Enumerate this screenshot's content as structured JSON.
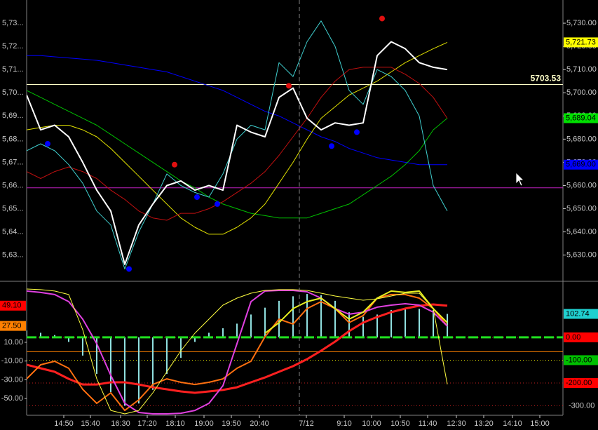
{
  "chart_data": [
    {
      "type": "line",
      "xlim": [
        0,
        153
      ],
      "ylim": [
        5619,
        5740
      ],
      "yticks": [
        {
          "value": 5630,
          "label": "5,630.00"
        },
        {
          "value": 5640,
          "label": "5,640.00"
        },
        {
          "value": 5650,
          "label": "5,650.00"
        },
        {
          "value": 5660,
          "label": "5,660.00"
        },
        {
          "value": 5670,
          "label": "5,670.00"
        },
        {
          "value": 5680,
          "label": "5,680.00"
        },
        {
          "value": 5690,
          "label": "5,690.00"
        },
        {
          "value": 5700,
          "label": "5,700.00"
        },
        {
          "value": 5710,
          "label": "5,710.00"
        },
        {
          "value": 5720,
          "label": "5,720.00"
        },
        {
          "value": 5730,
          "label": "5,730.00"
        }
      ],
      "left_labels": [
        "5,63...",
        "5,64...",
        "5,65...",
        "5,66...",
        "5,67...",
        "5,68...",
        "5,69...",
        "5,70...",
        "5,71...",
        "5,72...",
        "5,73..."
      ],
      "day_separator": 77.8,
      "x": [
        0,
        4,
        8,
        12,
        16,
        20,
        24,
        28,
        32,
        36,
        40,
        44,
        48,
        52,
        56,
        60,
        64,
        68,
        72,
        76,
        80,
        84,
        88,
        92,
        96,
        100,
        104,
        108,
        112,
        116,
        120
      ],
      "hlines": [
        {
          "value": 5703.53,
          "color": "#ffffc8",
          "label": "5703.53"
        },
        {
          "value": 5659,
          "color": "#c020c0"
        }
      ],
      "series": [
        {
          "type": "line",
          "color": "#0000ff",
          "width": 1,
          "values": [
            5716,
            5716,
            5715.5,
            5715,
            5714.5,
            5714,
            5713,
            5712,
            5711,
            5710,
            5709,
            5707,
            5705,
            5703,
            5701,
            5698,
            5695,
            5692,
            5690,
            5687,
            5684,
            5681,
            5679,
            5676,
            5674,
            5672,
            5671,
            5670,
            5669,
            5669,
            5669
          ],
          "last_label": "5,669.00",
          "label_color": "#0000ff"
        },
        {
          "type": "line",
          "color": "#00c000",
          "width": 1,
          "values": [
            5701,
            5698,
            5695,
            5692,
            5689,
            5686,
            5682,
            5678,
            5674,
            5670,
            5666,
            5662,
            5659,
            5655,
            5652,
            5650,
            5648,
            5647,
            5646,
            5646,
            5646,
            5648,
            5650,
            5652,
            5656,
            5660,
            5664,
            5669,
            5675,
            5684,
            5689.04
          ],
          "last_label": "5,689.04",
          "label_color": "#00e000"
        },
        {
          "type": "line",
          "color": "#e0e000",
          "width": 1,
          "values": [
            5684,
            5685,
            5686,
            5686,
            5684,
            5681,
            5676,
            5670,
            5664,
            5658,
            5652,
            5646,
            5642,
            5639,
            5639,
            5642,
            5646,
            5652,
            5661,
            5670,
            5680,
            5689,
            5694,
            5699,
            5702,
            5705,
            5709,
            5713,
            5716,
            5719,
            5721.73
          ],
          "last_label": "5,721.73",
          "label_color": "#ffff00"
        },
        {
          "type": "line",
          "color": "#c01010",
          "width": 1,
          "values": [
            5666,
            5663,
            5666,
            5668,
            5666,
            5663,
            5658,
            5654,
            5649,
            5646,
            5645,
            5648,
            5648,
            5650,
            5653,
            5657,
            5661,
            5666,
            5673,
            5681,
            5689,
            5698,
            5705,
            5710,
            5711,
            5711,
            5711,
            5708,
            5704,
            5698,
            5689
          ]
        },
        {
          "type": "line",
          "color": "#40d0d0",
          "width": 1,
          "values": [
            5675,
            5678,
            5675,
            5669,
            5661,
            5649,
            5643,
            5624,
            5640,
            5652,
            5665,
            5660,
            5657,
            5655,
            5665,
            5680,
            5686,
            5684,
            5713,
            5707,
            5722,
            5731,
            5720,
            5701,
            5695,
            5710,
            5707,
            5701,
            5690,
            5660,
            5649
          ]
        },
        {
          "type": "line",
          "color": "#ffffff",
          "width": 2,
          "values": [
            5699,
            5684,
            5686,
            5681,
            5670,
            5658,
            5649,
            5626,
            5643,
            5652,
            5660,
            5662,
            5658,
            5660,
            5658,
            5686,
            5683,
            5681,
            5698,
            5702,
            5689,
            5684,
            5687,
            5686,
            5687,
            5716,
            5722,
            5719,
            5713,
            5711,
            5710
          ]
        }
      ],
      "points": [
        {
          "x": 6,
          "y": 5678,
          "color": "#0000ff"
        },
        {
          "x": 29.2,
          "y": 5624,
          "color": "#0000ff"
        },
        {
          "x": 48.6,
          "y": 5655,
          "color": "#0000ff"
        },
        {
          "x": 54.4,
          "y": 5652,
          "color": "#0000ff"
        },
        {
          "x": 87,
          "y": 5677,
          "color": "#0000ff"
        },
        {
          "x": 94.2,
          "y": 5683,
          "color": "#0000ff"
        },
        {
          "x": 42.2,
          "y": 5669,
          "color": "#e01010"
        },
        {
          "x": 74.8,
          "y": 5703,
          "color": "#e01010"
        },
        {
          "x": 101.4,
          "y": 5732,
          "color": "#e01010"
        }
      ]
    },
    {
      "type": "line",
      "xlim": [
        0,
        153
      ],
      "ylim": [
        -67.9,
        68.4
      ],
      "yticks": [
        {
          "value": 10,
          "label": "10.00"
        },
        {
          "value": -10,
          "label": "-10.00"
        },
        {
          "value": -30,
          "label": "-30.00"
        },
        {
          "value": -50,
          "label": "-50.00"
        }
      ],
      "y2lim": [
        -341.5,
        218
      ],
      "y2ticks": [
        {
          "value": 0,
          "label": "0.00",
          "box": "#ff0000"
        },
        {
          "value": -100,
          "label": "-100.00",
          "box": "#00c000"
        },
        {
          "value": -200,
          "label": "-200.00",
          "box": "#ff0000"
        },
        {
          "value": -300,
          "label": "-300.00"
        }
      ],
      "xticks": [
        {
          "value": 10.6,
          "label": "14:50"
        },
        {
          "value": 18.2,
          "label": "15:40"
        },
        {
          "value": 26.8,
          "label": "16:30"
        },
        {
          "value": 34.4,
          "label": "17:20"
        },
        {
          "value": 42.4,
          "label": "18:10"
        },
        {
          "value": 50.6,
          "label": "19:00"
        },
        {
          "value": 58.4,
          "label": "19:50"
        },
        {
          "value": 66.4,
          "label": "20:40"
        },
        {
          "value": 79.8,
          "label": "7/12"
        },
        {
          "value": 90.6,
          "label": "9:10"
        },
        {
          "value": 98.4,
          "label": "10:00"
        },
        {
          "value": 106.6,
          "label": "10:50"
        },
        {
          "value": 114.4,
          "label": "11:40"
        },
        {
          "value": 122.6,
          "label": "12:30"
        },
        {
          "value": 130.4,
          "label": "13:20"
        },
        {
          "value": 138.6,
          "label": "14:10"
        },
        {
          "value": 146.4,
          "label": "15:00"
        }
      ],
      "x": [
        0,
        4,
        8,
        12,
        16,
        20,
        24,
        28,
        32,
        36,
        40,
        44,
        48,
        52,
        56,
        60,
        64,
        68,
        72,
        76,
        80,
        84,
        88,
        92,
        96,
        100,
        104,
        108,
        112,
        116,
        120
      ],
      "hlines": [
        {
          "value": 0,
          "color": "#ff8000"
        }
      ],
      "series": [
        {
          "type": "bar",
          "axis": "y2",
          "color": "#90e0e0",
          "values": [
            30,
            20,
            10,
            -20,
            -80,
            -160,
            -240,
            -300,
            -290,
            -230,
            -160,
            -90,
            -20,
            20,
            40,
            60,
            100,
            130,
            160,
            180,
            190,
            185,
            160,
            110,
            90,
            100,
            120,
            130,
            125,
            120,
            102.74
          ],
          "last_label": "102.74",
          "label_color": "#20d0d0"
        },
        {
          "type": "line",
          "color": "#ff2020",
          "width": 3,
          "values": [
            -14,
            -17.7,
            -21.5,
            -29,
            -35,
            -35,
            -32.7,
            -32.7,
            -35,
            -38,
            -40.2,
            -42.4,
            -43.9,
            -42.4,
            -40.9,
            -38,
            -32.7,
            -27.5,
            -21.5,
            -15.5,
            -8,
            1,
            10.7,
            22,
            31,
            37,
            42.2,
            46,
            49,
            50.4,
            49.1
          ],
          "last_label": "49.10",
          "label_color": "#ff0000"
        },
        {
          "type": "line",
          "color": "#ff7010",
          "width": 2,
          "values": [
            -29,
            -14,
            -10.2,
            -17.7,
            -40.2,
            -55.2,
            -43.9,
            -62.7,
            -51.4,
            -35,
            -29,
            -32.7,
            -35,
            -32.7,
            -29,
            -17.7,
            -10.2,
            16,
            34.7,
            29.5,
            46,
            53.4,
            46,
            31,
            38.5,
            57.2,
            61,
            61,
            57.2,
            46,
            27.5
          ],
          "last_label": "27.50",
          "label_color": "#ff8000"
        },
        {
          "type": "line",
          "color": "#e040e0",
          "width": 2,
          "values": [
            64.7,
            63.2,
            61,
            53.4,
            34.7,
            8.5,
            -25.2,
            -55.2,
            -64.9,
            -66.4,
            -66.4,
            -65.7,
            -62.7,
            -55.2,
            -36.4,
            8.5,
            53.4,
            64.7,
            65.4,
            65.4,
            63.9,
            57.2,
            46,
            40,
            42.2,
            47.5,
            49.7,
            51.2,
            49.7,
            42.2,
            27.2
          ]
        },
        {
          "type": "line",
          "color": "#ffff40",
          "width": 1,
          "values": [
            66.9,
            66.2,
            64.7,
            61,
            23.5,
            -29,
            -62.7,
            -66.4,
            -62.7,
            -43.9,
            -21.5,
            1,
            19.7,
            34.7,
            49.7,
            57.2,
            62.4,
            65.4,
            66.2,
            66.2,
            65.4,
            62.4,
            59.4,
            57.2,
            54.9,
            56.4,
            59.4,
            62.4,
            62.4,
            46,
            -34.9
          ]
        },
        {
          "type": "line",
          "color": "#e8f020",
          "width": 2,
          "values": [
            null,
            null,
            null,
            null,
            null,
            null,
            null,
            null,
            null,
            null,
            null,
            null,
            null,
            null,
            null,
            null,
            null,
            19.7,
            31,
            46,
            53.4,
            57.2,
            46,
            34.7,
            42.2,
            57.2,
            64.7,
            63.2,
            64.7,
            46,
            31
          ]
        }
      ]
    }
  ]
}
